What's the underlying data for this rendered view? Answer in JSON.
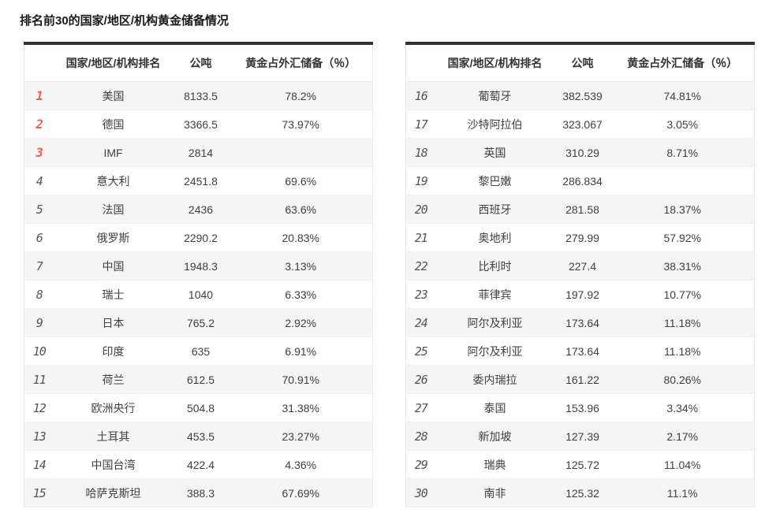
{
  "page": {
    "title": "排名前30的国家/地区/机构黄金储备情况"
  },
  "colors": {
    "table_top_border": "#333333",
    "rank_top3": "#e9655c",
    "rank_default": "#555555",
    "row_alt_bg": "#f5f5f5"
  },
  "columns": {
    "rank": "",
    "name": "国家/地区/机构排名",
    "tonnes": "公吨",
    "share": "黄金占外汇储备（％）"
  },
  "tables": {
    "left": {
      "rows": [
        {
          "rank": "1",
          "name": "美国",
          "tonnes": "8133.5",
          "share": "78.2%"
        },
        {
          "rank": "2",
          "name": "德国",
          "tonnes": "3366.5",
          "share": "73.97%"
        },
        {
          "rank": "3",
          "name": "IMF",
          "tonnes": "2814",
          "share": ""
        },
        {
          "rank": "4",
          "name": "意大利",
          "tonnes": "2451.8",
          "share": "69.6%"
        },
        {
          "rank": "5",
          "name": "法国",
          "tonnes": "2436",
          "share": "63.6%"
        },
        {
          "rank": "6",
          "name": "俄罗斯",
          "tonnes": "2290.2",
          "share": "20.83%"
        },
        {
          "rank": "7",
          "name": "中国",
          "tonnes": "1948.3",
          "share": "3.13%"
        },
        {
          "rank": "8",
          "name": "瑞士",
          "tonnes": "1040",
          "share": "6.33%"
        },
        {
          "rank": "9",
          "name": "日本",
          "tonnes": "765.2",
          "share": "2.92%"
        },
        {
          "rank": "10",
          "name": "印度",
          "tonnes": "635",
          "share": "6.91%"
        },
        {
          "rank": "11",
          "name": "荷兰",
          "tonnes": "612.5",
          "share": "70.91%"
        },
        {
          "rank": "12",
          "name": "欧洲央行",
          "tonnes": "504.8",
          "share": "31.38%"
        },
        {
          "rank": "13",
          "name": "土耳其",
          "tonnes": "453.5",
          "share": "23.27%"
        },
        {
          "rank": "14",
          "name": "中国台湾",
          "tonnes": "422.4",
          "share": "4.36%"
        },
        {
          "rank": "15",
          "name": "哈萨克斯坦",
          "tonnes": "388.3",
          "share": "67.69%"
        }
      ]
    },
    "right": {
      "rows": [
        {
          "rank": "16",
          "name": "葡萄牙",
          "tonnes": "382.539",
          "share": "74.81%"
        },
        {
          "rank": "17",
          "name": "沙特阿拉伯",
          "tonnes": "323.067",
          "share": "3.05%"
        },
        {
          "rank": "18",
          "name": "英国",
          "tonnes": "310.29",
          "share": "8.71%"
        },
        {
          "rank": "19",
          "name": "黎巴嫩",
          "tonnes": "286.834",
          "share": ""
        },
        {
          "rank": "20",
          "name": "西班牙",
          "tonnes": "281.58",
          "share": "18.37%"
        },
        {
          "rank": "21",
          "name": "奥地利",
          "tonnes": "279.99",
          "share": "57.92%"
        },
        {
          "rank": "22",
          "name": "比利时",
          "tonnes": "227.4",
          "share": "38.31%"
        },
        {
          "rank": "23",
          "name": "菲律宾",
          "tonnes": "197.92",
          "share": "10.77%"
        },
        {
          "rank": "24",
          "name": "阿尔及利亚",
          "tonnes": "173.64",
          "share": "11.18%"
        },
        {
          "rank": "25",
          "name": "阿尔及利亚",
          "tonnes": "173.64",
          "share": "11.18%"
        },
        {
          "rank": "26",
          "name": "委内瑞拉",
          "tonnes": "161.22",
          "share": "80.26%"
        },
        {
          "rank": "27",
          "name": "泰国",
          "tonnes": "153.96",
          "share": "3.34%"
        },
        {
          "rank": "28",
          "name": "新加坡",
          "tonnes": "127.39",
          "share": "2.17%"
        },
        {
          "rank": "29",
          "name": "瑞典",
          "tonnes": "125.72",
          "share": "11.04%"
        },
        {
          "rank": "30",
          "name": "南非",
          "tonnes": "125.32",
          "share": "11.1%"
        }
      ]
    }
  }
}
